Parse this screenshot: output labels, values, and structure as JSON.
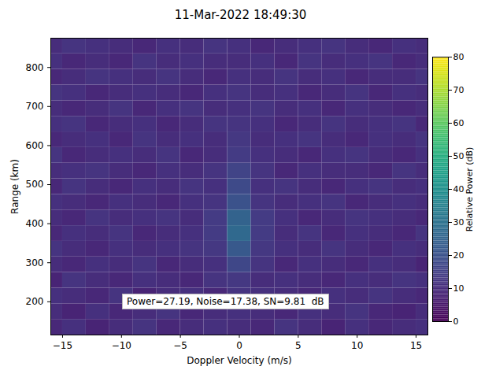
{
  "chart_data": {
    "type": "heatmap",
    "title": "11-Mar-2022 18:49:30",
    "x_label": "Doppler Velocity (m/s)",
    "y_label": "Range (km)",
    "color": "viridis",
    "xlim": [
      -16,
      16
    ],
    "ylim": [
      115,
      875
    ],
    "xticks": [
      -15,
      -10,
      -5,
      0,
      5,
      10,
      15
    ],
    "yticks": [
      200,
      300,
      400,
      500,
      600,
      700,
      800
    ],
    "x": [
      -16,
      -14,
      -12,
      -10,
      -8,
      -6,
      -4,
      -2,
      0,
      2,
      4,
      6,
      8,
      10,
      12,
      14,
      16
    ],
    "y": [
      135,
      175,
      215,
      255,
      295,
      335,
      375,
      415,
      455,
      495,
      535,
      575,
      615,
      655,
      695,
      735,
      775,
      815,
      855
    ],
    "z": [
      [
        9,
        11,
        8,
        10,
        12,
        9,
        10,
        11,
        10,
        9,
        12,
        10,
        8,
        11,
        9,
        10,
        11
      ],
      [
        10,
        8,
        11,
        9,
        10,
        12,
        9,
        10,
        11,
        10,
        9,
        11,
        10,
        12,
        9,
        8,
        10
      ],
      [
        11,
        10,
        9,
        12,
        8,
        10,
        11,
        9,
        12,
        11,
        10,
        9,
        11,
        10,
        12,
        10,
        9
      ],
      [
        8,
        12,
        10,
        9,
        11,
        10,
        9,
        12,
        13,
        10,
        11,
        10,
        9,
        11,
        10,
        12,
        11
      ],
      [
        10,
        9,
        11,
        10,
        12,
        9,
        10,
        11,
        17,
        12,
        9,
        11,
        10,
        9,
        11,
        10,
        8
      ],
      [
        12,
        10,
        9,
        11,
        10,
        11,
        12,
        13,
        22,
        13,
        11,
        10,
        12,
        10,
        9,
        11,
        10
      ],
      [
        9,
        11,
        10,
        12,
        9,
        10,
        11,
        14,
        27,
        14,
        10,
        12,
        9,
        11,
        10,
        9,
        12
      ],
      [
        10,
        9,
        12,
        10,
        11,
        12,
        10,
        14,
        25,
        14,
        11,
        9,
        10,
        12,
        11,
        10,
        9
      ],
      [
        11,
        10,
        9,
        11,
        10,
        9,
        11,
        12,
        20,
        12,
        10,
        11,
        12,
        9,
        10,
        11,
        10
      ],
      [
        9,
        12,
        10,
        9,
        11,
        10,
        12,
        11,
        18,
        11,
        12,
        10,
        9,
        11,
        12,
        10,
        11
      ],
      [
        10,
        11,
        12,
        10,
        9,
        11,
        10,
        12,
        16,
        12,
        9,
        11,
        10,
        10,
        9,
        12,
        10
      ],
      [
        12,
        9,
        10,
        11,
        10,
        12,
        9,
        10,
        14,
        11,
        10,
        9,
        11,
        12,
        10,
        9,
        11
      ],
      [
        9,
        10,
        11,
        9,
        12,
        10,
        11,
        10,
        13,
        10,
        11,
        12,
        10,
        9,
        11,
        10,
        12
      ],
      [
        11,
        12,
        9,
        10,
        11,
        9,
        10,
        12,
        12,
        11,
        9,
        10,
        12,
        10,
        11,
        12,
        9
      ],
      [
        10,
        9,
        10,
        12,
        9,
        11,
        12,
        10,
        11,
        12,
        10,
        11,
        9,
        11,
        10,
        9,
        10
      ],
      [
        12,
        11,
        9,
        10,
        11,
        10,
        9,
        11,
        12,
        10,
        11,
        9,
        10,
        12,
        9,
        11,
        10
      ],
      [
        9,
        10,
        12,
        11,
        10,
        12,
        10,
        9,
        11,
        10,
        12,
        10,
        11,
        9,
        10,
        10,
        12
      ],
      [
        11,
        9,
        10,
        9,
        12,
        10,
        11,
        10,
        10,
        11,
        9,
        12,
        10,
        11,
        12,
        9,
        10
      ],
      [
        10,
        12,
        11,
        10,
        9,
        11,
        10,
        12,
        11,
        9,
        10,
        11,
        12,
        10,
        9,
        11,
        10
      ]
    ],
    "colorbar": {
      "label": "Relative Power (dB)",
      "range": [
        0,
        80
      ],
      "ticks": [
        0,
        10,
        20,
        30,
        40,
        50,
        60,
        70,
        80
      ]
    },
    "annotation": "Power=27.19, Noise=17.38, SN=9.81  dB"
  }
}
